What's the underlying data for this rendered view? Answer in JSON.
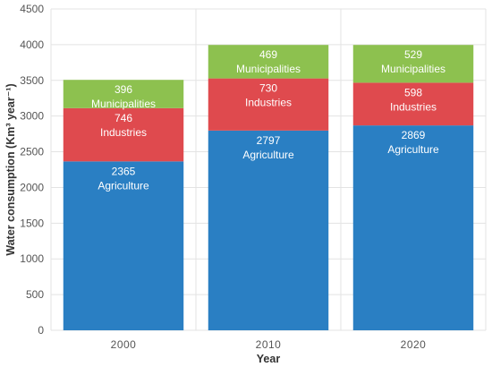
{
  "chart_data": {
    "type": "bar",
    "stacked": true,
    "categories": [
      "2000",
      "2010",
      "2020"
    ],
    "series": [
      {
        "name": "Agriculture",
        "values": [
          2365,
          2797,
          2869
        ],
        "color": "#2a7fc3"
      },
      {
        "name": "Industries",
        "values": [
          746,
          730,
          598
        ],
        "color": "#df4a4e"
      },
      {
        "name": "Municipalities",
        "values": [
          396,
          469,
          529
        ],
        "color": "#8dc14f"
      }
    ],
    "xlabel": "Year",
    "ylabel": "Water consumption (Km³ year⁻¹)",
    "ylim": [
      0,
      4500
    ],
    "yticks": [
      0,
      500,
      1000,
      1500,
      2000,
      2500,
      3000,
      3500,
      4000,
      4500
    ],
    "grid": true,
    "legend": "none"
  }
}
